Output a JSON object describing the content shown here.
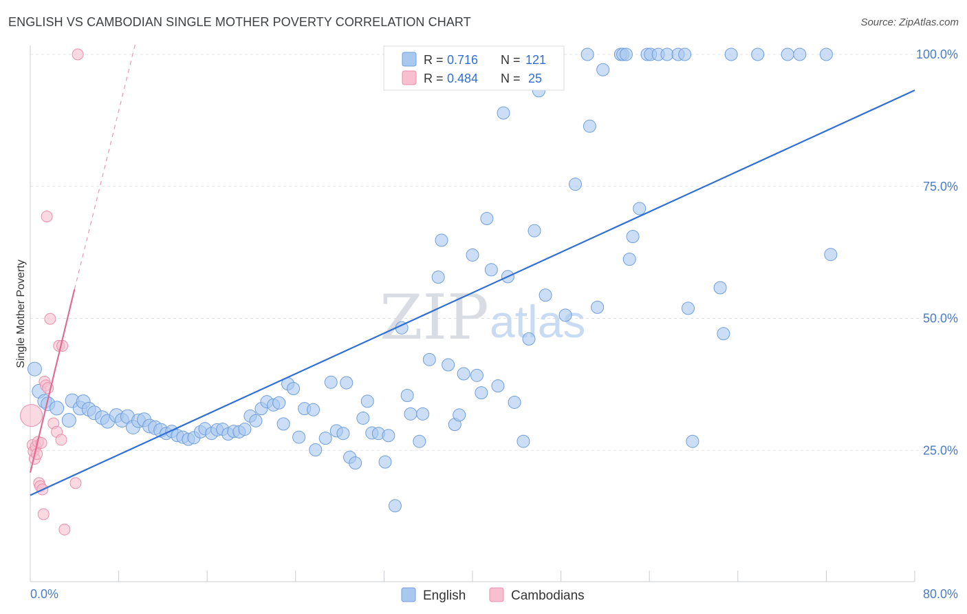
{
  "title": "ENGLISH VS CAMBODIAN SINGLE MOTHER POVERTY CORRELATION CHART",
  "source": "Source: ZipAtlas.com",
  "watermark": {
    "zip": "ZIP",
    "atlas": "atlas"
  },
  "legend_top": {
    "rows": [
      {
        "r_label": "R =",
        "r_value": "0.716",
        "n_label": "N =",
        "n_value": "121"
      },
      {
        "r_label": "R =",
        "r_value": "0.484",
        "n_label": "N =",
        "n_value": "25"
      }
    ]
  },
  "legend_bottom": {
    "english": "English",
    "cambodians": "Cambodians"
  },
  "colors": {
    "english_fill": "#a9c8f0",
    "english_stroke": "#6f9fde",
    "english_line": "#2f6fd6",
    "cambodian_fill": "#f7bfd0",
    "cambodian_stroke": "#ea8fab",
    "cambodian_line": "#e06b95",
    "tick_text": "#4a7cc8",
    "grid": "#dde1e6"
  },
  "chart_data": {
    "type": "scatter",
    "title": "ENGLISH VS CAMBODIAN SINGLE MOTHER POVERTY CORRELATION CHART",
    "xlabel": "",
    "ylabel": "Single Mother Poverty",
    "xlim": [
      0,
      80
    ],
    "ylim": [
      0,
      102
    ],
    "x_tick_labels": [
      "0.0%",
      "80.0%"
    ],
    "y_tick_labels": [
      "25.0%",
      "50.0%",
      "75.0%",
      "100.0%"
    ],
    "y_ticks": [
      25,
      50,
      75,
      100
    ],
    "grid": true,
    "series": [
      {
        "name": "English",
        "r": 0.716,
        "n": 121,
        "trend": {
          "x0": 0,
          "y0": 16.5,
          "x1": 80,
          "y1": 93.2,
          "dashed": false
        },
        "points": [
          [
            0.4,
            40.4
          ],
          [
            0.8,
            36.2
          ],
          [
            1.3,
            34.3
          ],
          [
            1.6,
            33.8
          ],
          [
            2.4,
            33.0
          ],
          [
            3.5,
            30.7
          ],
          [
            3.8,
            34.4
          ],
          [
            4.5,
            33.0
          ],
          [
            4.8,
            34.2
          ],
          [
            5.3,
            32.8
          ],
          [
            5.8,
            32.1
          ],
          [
            6.5,
            31.2
          ],
          [
            7.0,
            30.5
          ],
          [
            7.8,
            31.6
          ],
          [
            8.3,
            30.7
          ],
          [
            8.8,
            31.4
          ],
          [
            9.3,
            29.4
          ],
          [
            9.8,
            30.6
          ],
          [
            10.3,
            30.8
          ],
          [
            10.8,
            29.6
          ],
          [
            11.3,
            29.3
          ],
          [
            11.8,
            28.8
          ],
          [
            12.3,
            28.2
          ],
          [
            12.8,
            28.6
          ],
          [
            13.3,
            27.8
          ],
          [
            13.8,
            27.5
          ],
          [
            14.3,
            27.1
          ],
          [
            14.8,
            27.4
          ],
          [
            15.4,
            28.5
          ],
          [
            15.8,
            29.1
          ],
          [
            16.4,
            28.2
          ],
          [
            16.9,
            28.9
          ],
          [
            17.4,
            29.0
          ],
          [
            17.9,
            28.1
          ],
          [
            18.4,
            28.6
          ],
          [
            18.9,
            28.5
          ],
          [
            19.4,
            29.0
          ],
          [
            19.9,
            31.5
          ],
          [
            20.4,
            30.6
          ],
          [
            20.9,
            32.9
          ],
          [
            21.4,
            34.2
          ],
          [
            22.0,
            33.6
          ],
          [
            22.5,
            34.0
          ],
          [
            22.9,
            30.0
          ],
          [
            23.3,
            37.6
          ],
          [
            23.8,
            36.7
          ],
          [
            24.3,
            27.5
          ],
          [
            24.8,
            32.9
          ],
          [
            25.6,
            32.7
          ],
          [
            25.8,
            25.1
          ],
          [
            26.7,
            27.3
          ],
          [
            27.2,
            37.9
          ],
          [
            27.7,
            28.7
          ],
          [
            28.3,
            28.2
          ],
          [
            28.6,
            37.8
          ],
          [
            28.9,
            23.7
          ],
          [
            29.4,
            22.6
          ],
          [
            30.1,
            31.1
          ],
          [
            30.5,
            34.3
          ],
          [
            30.9,
            28.3
          ],
          [
            31.5,
            28.2
          ],
          [
            32.1,
            22.8
          ],
          [
            32.4,
            27.8
          ],
          [
            33.0,
            14.5
          ],
          [
            33.6,
            48.2
          ],
          [
            34.1,
            35.4
          ],
          [
            34.4,
            31.9
          ],
          [
            35.2,
            26.7
          ],
          [
            35.5,
            31.9
          ],
          [
            36.1,
            42.2
          ],
          [
            36.9,
            57.8
          ],
          [
            37.2,
            64.8
          ],
          [
            37.8,
            41.2
          ],
          [
            38.4,
            29.9
          ],
          [
            38.8,
            31.7
          ],
          [
            39.2,
            39.5
          ],
          [
            40.0,
            62.0
          ],
          [
            40.4,
            39.2
          ],
          [
            40.8,
            35.9
          ],
          [
            41.3,
            68.9
          ],
          [
            41.7,
            59.2
          ],
          [
            42.3,
            37.2
          ],
          [
            42.8,
            88.9
          ],
          [
            43.2,
            57.9
          ],
          [
            43.8,
            34.1
          ],
          [
            44.3,
            100.0
          ],
          [
            44.6,
            26.7
          ],
          [
            45.1,
            46.1
          ],
          [
            45.6,
            66.6
          ],
          [
            46.0,
            93.1
          ],
          [
            46.6,
            54.4
          ],
          [
            47.1,
            100.0
          ],
          [
            47.5,
            100.0
          ],
          [
            48.4,
            50.6
          ],
          [
            49.3,
            75.4
          ],
          [
            50.4,
            100.0
          ],
          [
            50.6,
            86.4
          ],
          [
            51.3,
            52.1
          ],
          [
            51.8,
            97.1
          ],
          [
            53.4,
            100.0
          ],
          [
            53.6,
            100.0
          ],
          [
            53.9,
            100.0
          ],
          [
            54.2,
            61.2
          ],
          [
            54.5,
            65.5
          ],
          [
            55.1,
            70.8
          ],
          [
            55.8,
            100.0
          ],
          [
            56.1,
            100.0
          ],
          [
            56.8,
            100.0
          ],
          [
            57.6,
            100.0
          ],
          [
            58.6,
            100.0
          ],
          [
            59.2,
            100.0
          ],
          [
            59.5,
            51.9
          ],
          [
            59.9,
            26.7
          ],
          [
            62.4,
            55.8
          ],
          [
            62.7,
            47.1
          ],
          [
            63.4,
            100.0
          ],
          [
            65.8,
            100.0
          ],
          [
            68.5,
            100.0
          ],
          [
            69.6,
            100.0
          ],
          [
            72.0,
            100.0
          ],
          [
            72.4,
            62.1
          ]
        ]
      },
      {
        "name": "Cambodians",
        "r": 0.484,
        "n": 25,
        "trend": {
          "x0": 0,
          "y0": 20.8,
          "x1": 4.0,
          "y1": 55.5,
          "dashed": false,
          "extension": {
            "x0": 4.0,
            "y0": 55.5,
            "x1": 9.5,
            "y1": 102.0,
            "dashed": true
          }
        },
        "points": [
          [
            0.1,
            31.6
          ],
          [
            0.2,
            26.0
          ],
          [
            0.3,
            24.8
          ],
          [
            0.4,
            23.4
          ],
          [
            0.5,
            25.7
          ],
          [
            0.6,
            24.3
          ],
          [
            0.7,
            26.6
          ],
          [
            0.8,
            18.8
          ],
          [
            0.9,
            18.2
          ],
          [
            1.0,
            26.4
          ],
          [
            1.1,
            17.6
          ],
          [
            1.2,
            12.9
          ],
          [
            1.3,
            38.0
          ],
          [
            1.4,
            37.3
          ],
          [
            1.5,
            69.3
          ],
          [
            1.6,
            36.8
          ],
          [
            1.8,
            49.9
          ],
          [
            2.1,
            30.1
          ],
          [
            2.4,
            28.5
          ],
          [
            2.6,
            44.8
          ],
          [
            2.8,
            27.0
          ],
          [
            2.9,
            44.8
          ],
          [
            3.1,
            10.0
          ],
          [
            4.1,
            18.8
          ],
          [
            4.3,
            100.0
          ]
        ]
      }
    ]
  }
}
